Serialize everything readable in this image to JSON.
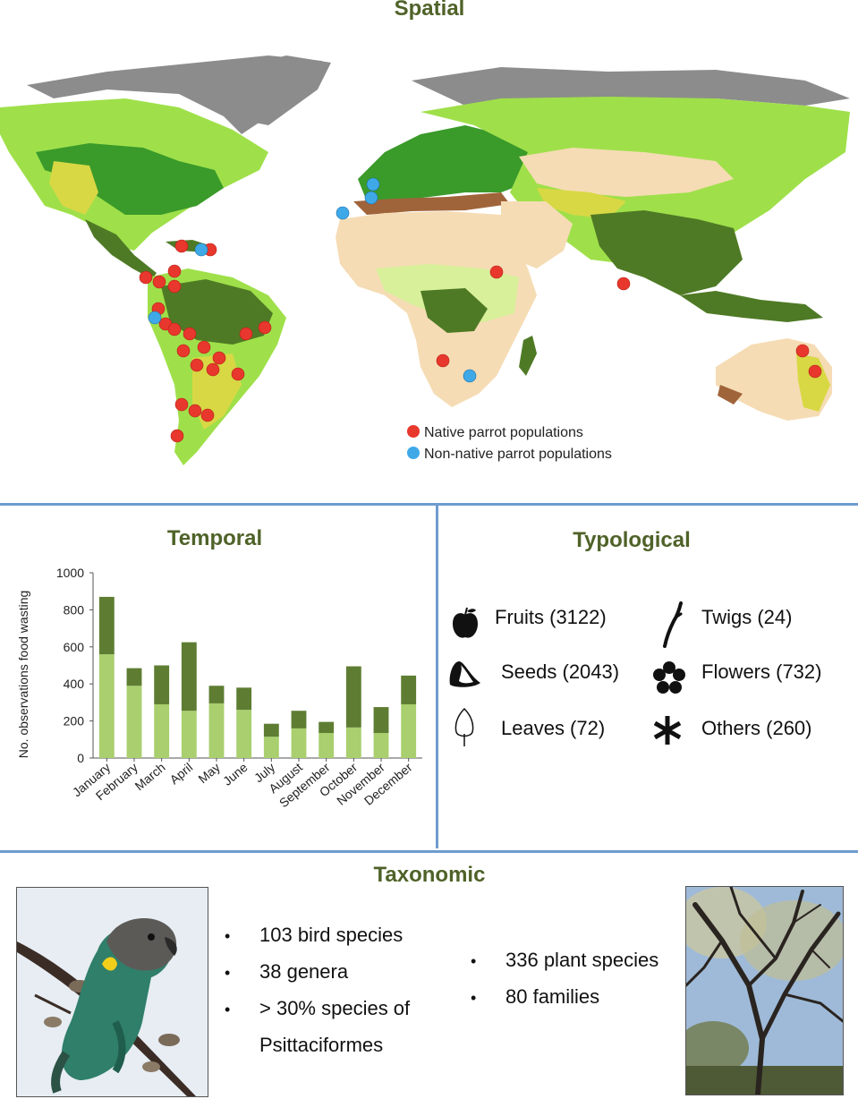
{
  "spatial": {
    "title": "Spatial",
    "legend": [
      {
        "label": "Native parrot populations",
        "color": "#e8372c"
      },
      {
        "label": "Non-native parrot populations",
        "color": "#3fa9e8"
      }
    ]
  },
  "temporal": {
    "title": "Temporal"
  },
  "typological": {
    "title": "Typological",
    "items": [
      {
        "label": "Fruits (3122)",
        "icon": "apple-icon"
      },
      {
        "label": "Twigs (24)",
        "icon": "twig-icon"
      },
      {
        "label": "Seeds (2043)",
        "icon": "seed-icon"
      },
      {
        "label": "Flowers (732)",
        "icon": "flower-icon"
      },
      {
        "label": "Leaves (72)",
        "icon": "leaf-icon"
      },
      {
        "label": "Others (260)",
        "icon": "asterisk-icon"
      }
    ]
  },
  "taxonomic": {
    "title": "Taxonomic",
    "birds": [
      "103 bird species",
      "38 genera",
      "> 30% species of",
      "Psittaciformes"
    ],
    "plants": [
      "336 plant species",
      "80 families"
    ]
  },
  "colors": {
    "title": "#4f6228",
    "divider": "#6f9ccf",
    "bar_light": "#a9cf6e",
    "bar_dark": "#5e7d32"
  },
  "chart_data": {
    "type": "bar",
    "stacked": true,
    "title": "Temporal",
    "ylabel": "No. observations food wasting",
    "ylim": [
      0,
      1000
    ],
    "yticks": [
      "0",
      "200",
      "400",
      "600",
      "800",
      "1000"
    ],
    "categories": [
      "January",
      "February",
      "March",
      "April",
      "May",
      "June",
      "July",
      "August",
      "September",
      "October",
      "November",
      "December"
    ],
    "series": [
      {
        "values": [
          560,
          390,
          290,
          255,
          295,
          260,
          115,
          160,
          135,
          165,
          135,
          290
        ],
        "color": "#a9cf6e"
      },
      {
        "values": [
          310,
          95,
          210,
          370,
          95,
          120,
          70,
          95,
          60,
          330,
          140,
          155
        ],
        "color": "#5e7d32"
      }
    ],
    "grid": false,
    "legend": "none"
  }
}
